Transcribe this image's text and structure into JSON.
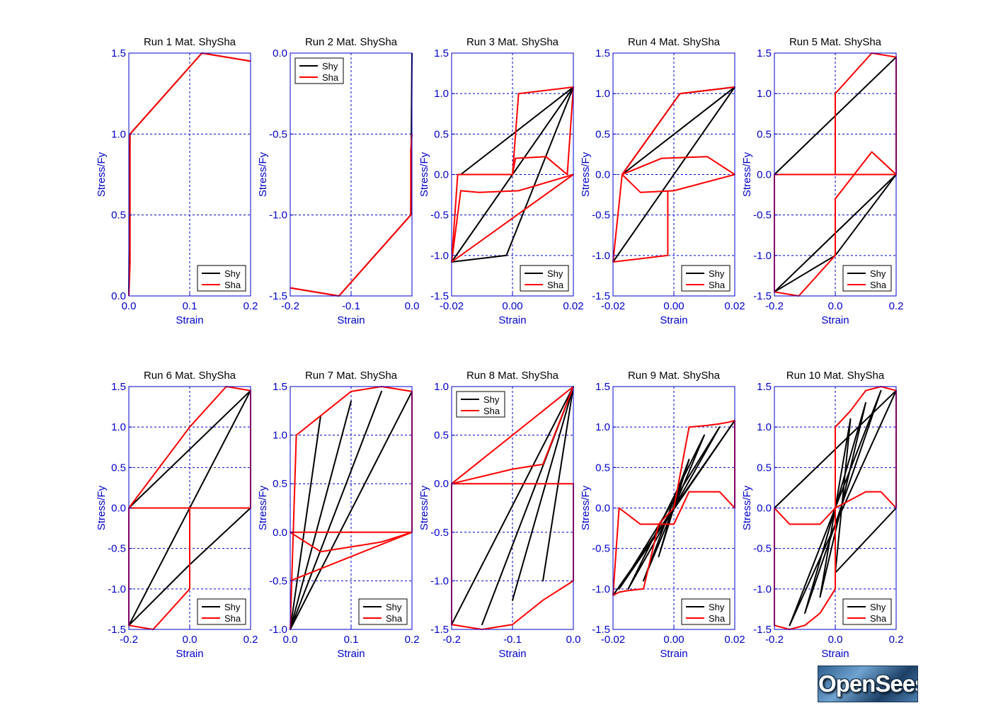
{
  "logo_text": "OpenSees",
  "colors": {
    "axis": "#0000cc",
    "grid": "#0000cc",
    "title": "#000000",
    "shy": "#000000",
    "sha": "#ff0000"
  },
  "chart_data": [
    {
      "type": "line",
      "title": "Run 1   Mat. ShySha",
      "xlabel": "Strain",
      "ylabel": "Stress/Fy",
      "xlim": [
        0,
        0.2
      ],
      "ylim": [
        0,
        1.5
      ],
      "xticks": [
        0,
        0.1,
        0.2
      ],
      "xtick_labels": [
        "0.0",
        "0.1",
        "0.2"
      ],
      "yticks": [
        0,
        0.5,
        1,
        1.5
      ],
      "ytick_labels": [
        "0.0",
        "0.5",
        "1.0",
        "1.5"
      ],
      "legend": "bottom-right",
      "series": [
        {
          "name": "Shy",
          "color": "#000000",
          "x": [
            0,
            0.002,
            0.12,
            0.2
          ],
          "y": [
            0,
            1.0,
            1.5,
            1.45
          ]
        },
        {
          "name": "Sha",
          "color": "#ff0000",
          "x": [
            0,
            0.002,
            0.002,
            0.12,
            0.2
          ],
          "y": [
            0,
            0.2,
            1.0,
            1.5,
            1.45
          ]
        }
      ]
    },
    {
      "type": "line",
      "title": "Run 2   Mat. ShySha",
      "xlabel": "Strain",
      "ylabel": "Stress/Fy",
      "xlim": [
        -0.2,
        0
      ],
      "ylim": [
        -1.5,
        0
      ],
      "xticks": [
        -0.2,
        -0.1,
        0
      ],
      "xtick_labels": [
        "-0.2",
        "-0.1",
        "0.0"
      ],
      "yticks": [
        -1.5,
        -1,
        -0.5,
        0
      ],
      "ytick_labels": [
        "-1.5",
        "-1.0",
        "-0.5",
        "0.0"
      ],
      "legend": "top-left",
      "series": [
        {
          "name": "Shy",
          "color": "#000000",
          "x": [
            0,
            -0.002,
            -0.12,
            -0.2
          ],
          "y": [
            0,
            -1.0,
            -1.5,
            -1.45
          ]
        },
        {
          "name": "Sha",
          "color": "#ff0000",
          "x": [
            0,
            -0.002,
            -0.002,
            -0.12,
            -0.2
          ],
          "y": [
            -0.5,
            -0.6,
            -1.0,
            -1.5,
            -1.45
          ]
        }
      ]
    },
    {
      "type": "line",
      "title": "Run 3   Mat. ShySha",
      "xlabel": "Strain",
      "ylabel": "Stress/Fy",
      "xlim": [
        -0.02,
        0.02
      ],
      "ylim": [
        -1.5,
        1.5
      ],
      "xticks": [
        -0.02,
        0,
        0.02
      ],
      "xtick_labels": [
        "-0.02",
        "0.00",
        "0.02"
      ],
      "yticks": [
        -1.5,
        -1,
        -0.5,
        0,
        0.5,
        1,
        1.5
      ],
      "ytick_labels": [
        "-1.5",
        "-1.0",
        "-0.5",
        "0.0",
        "0.5",
        "1.0",
        "1.5"
      ],
      "legend": "bottom-right",
      "series": [
        {
          "name": "Shy",
          "color": "#000000",
          "x": [
            -0.017,
            0.02,
            -0.02,
            -0.002,
            0.02,
            -0.02
          ],
          "y": [
            0,
            1.08,
            -1.08,
            -1.0,
            1.08,
            -1.08
          ]
        },
        {
          "name": "Sha",
          "color": "#ff0000",
          "x": [
            0,
            0.001,
            0.002,
            0.02,
            0.018,
            0.011,
            0.001,
            0.0,
            -0.018,
            -0.02,
            -0.017,
            -0.011,
            0.002,
            0.02,
            -0.02
          ],
          "y": [
            0,
            0.5,
            1.0,
            1.08,
            0.0,
            0.22,
            0.2,
            0.0,
            0.0,
            -1.08,
            -0.2,
            -0.22,
            -0.2,
            0.0,
            -1.08
          ]
        }
      ]
    },
    {
      "type": "line",
      "title": "Run 4   Mat. ShySha",
      "xlabel": "Strain",
      "ylabel": "Stress/Fy",
      "xlim": [
        -0.02,
        0.02
      ],
      "ylim": [
        -1.5,
        1.5
      ],
      "xticks": [
        -0.02,
        0,
        0.02
      ],
      "xtick_labels": [
        "-0.02",
        "0.00",
        "0.02"
      ],
      "yticks": [
        -1.5,
        -1,
        -0.5,
        0,
        0.5,
        1,
        1.5
      ],
      "ytick_labels": [
        "-1.5",
        "-1.0",
        "-0.5",
        "0.0",
        "0.5",
        "1.0",
        "1.5"
      ],
      "legend": "bottom-right",
      "series": [
        {
          "name": "Shy",
          "color": "#000000",
          "x": [
            -0.02,
            0.02,
            -0.017,
            0.002,
            0.02,
            -0.02
          ],
          "y": [
            -1.08,
            1.08,
            0,
            1.0,
            1.08,
            -1.08
          ]
        },
        {
          "name": "Sha",
          "color": "#ff0000",
          "x": [
            -0.002,
            -0.002,
            -0.02,
            -0.017,
            -0.011,
            0.0,
            0.02,
            0.011,
            -0.004,
            -0.017,
            0.002,
            0.02
          ],
          "y": [
            -0.2,
            -1.0,
            -1.08,
            0.0,
            -0.22,
            -0.2,
            0.0,
            0.22,
            0.2,
            0.0,
            1.0,
            1.08
          ]
        }
      ]
    },
    {
      "type": "line",
      "title": "Run 5   Mat. ShySha",
      "xlabel": "Strain",
      "ylabel": "Stress/Fy",
      "xlim": [
        -0.2,
        0.2
      ],
      "ylim": [
        -1.5,
        1.5
      ],
      "xticks": [
        -0.2,
        0,
        0.2
      ],
      "xtick_labels": [
        "-0.2",
        "0.0",
        "0.2"
      ],
      "yticks": [
        -1.5,
        -1,
        -0.5,
        0,
        0.5,
        1,
        1.5
      ],
      "ytick_labels": [
        "-1.5",
        "-1.0",
        "-0.5",
        "0.0",
        "0.5",
        "1.0",
        "1.5"
      ],
      "legend": "bottom-right",
      "series": [
        {
          "name": "Shy",
          "color": "#000000",
          "x": [
            -0.2,
            0.2,
            0.2,
            -0.2,
            0.0,
            0.2
          ],
          "y": [
            0,
            1.45,
            0,
            -1.45,
            -1.0,
            0
          ]
        },
        {
          "name": "Sha",
          "color": "#ff0000",
          "x": [
            0,
            0,
            0.12,
            0.2,
            0.2,
            0.0,
            -0.2,
            -0.2,
            -0.12,
            0.0,
            0.0,
            0.0,
            0.12,
            0.2,
            0.2
          ],
          "y": [
            0,
            1.0,
            1.5,
            1.45,
            0,
            0,
            0,
            -1.45,
            -1.5,
            -1.0,
            -0.5,
            -0.3,
            0.28,
            0.0,
            1.45
          ]
        }
      ]
    },
    {
      "type": "line",
      "title": "Run 6   Mat. ShySha",
      "xlabel": "Strain",
      "ylabel": "Stress/Fy",
      "xlim": [
        -0.2,
        0.2
      ],
      "ylim": [
        -1.5,
        1.5
      ],
      "xticks": [
        -0.2,
        0,
        0.2
      ],
      "xtick_labels": [
        "-0.2",
        "0.0",
        "0.2"
      ],
      "yticks": [
        -1.5,
        -1,
        -0.5,
        0,
        0.5,
        1,
        1.5
      ],
      "ytick_labels": [
        "-1.5",
        "-1.0",
        "-0.5",
        "0.0",
        "0.5",
        "1.0",
        "1.5"
      ],
      "legend": "bottom-right",
      "series": [
        {
          "name": "Shy",
          "color": "#000000",
          "x": [
            -0.2,
            0.2,
            -0.2,
            0.0,
            0.2,
            -0.2
          ],
          "y": [
            0,
            1.45,
            -1.45,
            -0.7,
            0,
            0
          ]
        },
        {
          "name": "Sha",
          "color": "#ff0000",
          "x": [
            -0.2,
            0.0,
            0.12,
            0.2,
            0.2,
            -0.2,
            -0.2,
            -0.12,
            0.0,
            0.0,
            0.0
          ],
          "y": [
            0,
            1.0,
            1.5,
            1.45,
            0,
            0,
            -1.45,
            -1.5,
            -1.0,
            -0.4,
            0
          ]
        }
      ]
    },
    {
      "type": "line",
      "title": "Run 7   Mat. ShySha",
      "xlabel": "Strain",
      "ylabel": "Stress/Fy",
      "xlim": [
        0,
        0.2
      ],
      "ylim": [
        -1,
        1.5
      ],
      "xticks": [
        0,
        0.1,
        0.2
      ],
      "xtick_labels": [
        "0.0",
        "0.1",
        "0.2"
      ],
      "yticks": [
        -1,
        -0.5,
        0,
        0.5,
        1,
        1.5
      ],
      "ytick_labels": [
        "-1.0",
        "-0.5",
        "0.0",
        "0.5",
        "1.0",
        "1.5"
      ],
      "legend": "bottom-right",
      "series": [
        {
          "name": "Shy",
          "color": "#000000",
          "x": [
            0,
            0.05,
            0,
            0.1,
            0,
            0.15,
            0,
            0.2,
            0
          ],
          "y": [
            -1,
            1.2,
            -1,
            1.35,
            -1,
            1.45,
            -1,
            1.45,
            -1
          ]
        },
        {
          "name": "Sha",
          "color": "#ff0000",
          "x": [
            0,
            0.01,
            0.05,
            0.1,
            0.15,
            0.2,
            0.2,
            0.15,
            0.1,
            0.05,
            0.01,
            0.0,
            0.05,
            0.1,
            0.15,
            0.2,
            0.0
          ],
          "y": [
            -1,
            1.0,
            1.2,
            1.45,
            1.5,
            1.45,
            0,
            0,
            0,
            0,
            0,
            0,
            -0.2,
            -0.15,
            -0.1,
            0,
            -0.5
          ]
        }
      ]
    },
    {
      "type": "line",
      "title": "Run 8   Mat. ShySha",
      "xlabel": "Strain",
      "ylabel": "Stress/Fy",
      "xlim": [
        -0.2,
        0
      ],
      "ylim": [
        -1.5,
        1
      ],
      "xticks": [
        -0.2,
        -0.1,
        0
      ],
      "xtick_labels": [
        "-0.2",
        "-0.1",
        "0.0"
      ],
      "yticks": [
        -1.5,
        -1,
        -0.5,
        0,
        0.5,
        1
      ],
      "ytick_labels": [
        "-1.5",
        "-1.0",
        "-0.5",
        "0.0",
        "0.5",
        "1.0"
      ],
      "legend": "top-left",
      "series": [
        {
          "name": "Shy",
          "color": "#000000",
          "x": [
            0,
            -0.2,
            0,
            -0.15,
            0,
            -0.1,
            0,
            -0.05,
            0
          ],
          "y": [
            1.0,
            -1.45,
            1.0,
            -1.45,
            1.0,
            -1.2,
            1.0,
            -1.0,
            1.0
          ]
        },
        {
          "name": "Sha",
          "color": "#ff0000",
          "x": [
            0,
            -0.2,
            -0.2,
            -0.15,
            -0.1,
            -0.05,
            0,
            0,
            -0.05,
            -0.1,
            -0.15,
            -0.2,
            -0.1,
            -0.05,
            0
          ],
          "y": [
            1.0,
            0,
            -1.45,
            -1.5,
            -1.45,
            -1.2,
            -1.0,
            0,
            0,
            0.0,
            0.0,
            0,
            0.15,
            0.2,
            1.0
          ]
        }
      ]
    },
    {
      "type": "line",
      "title": "Run 9   Mat. ShySha",
      "xlabel": "Strain",
      "ylabel": "Stress/Fy",
      "xlim": [
        -0.02,
        0.02
      ],
      "ylim": [
        -1.5,
        1.5
      ],
      "xticks": [
        -0.02,
        0,
        0.02
      ],
      "xtick_labels": [
        "-0.02",
        "0.00",
        "0.02"
      ],
      "yticks": [
        -1.5,
        -1,
        -0.5,
        0,
        0.5,
        1,
        1.5
      ],
      "ytick_labels": [
        "-1.5",
        "-1.0",
        "-0.5",
        "0.0",
        "0.5",
        "1.0",
        "1.5"
      ],
      "legend": "bottom-right",
      "series": [
        {
          "name": "Shy",
          "color": "#000000",
          "x": [
            -0.02,
            0.02,
            -0.018,
            0.015,
            -0.015,
            0.01,
            -0.01,
            0.005,
            -0.005,
            0.002
          ],
          "y": [
            -1.08,
            1.08,
            -1.0,
            1.0,
            -1.0,
            0.9,
            -0.9,
            0.6,
            -0.6,
            0.3
          ]
        },
        {
          "name": "Sha",
          "color": "#ff0000",
          "x": [
            -0.02,
            -0.018,
            -0.011,
            -0.005,
            0.0,
            0.005,
            0.011,
            0.015,
            0.018,
            0.02,
            0.02,
            0.015,
            0.01,
            0.005,
            0.0,
            -0.005,
            -0.01,
            -0.015,
            -0.018,
            -0.02
          ],
          "y": [
            -1.08,
            0.0,
            -0.2,
            -0.2,
            0.0,
            1.0,
            1.02,
            1.04,
            1.06,
            1.08,
            0,
            0.2,
            0.2,
            0.2,
            -0.2,
            -0.2,
            -1.0,
            -1.02,
            -1.04,
            -1.08
          ]
        }
      ]
    },
    {
      "type": "line",
      "title": "Run 10   Mat. ShySha",
      "xlabel": "Strain",
      "ylabel": "Stress/Fy",
      "xlim": [
        -0.2,
        0.2
      ],
      "ylim": [
        -1.5,
        1.5
      ],
      "xticks": [
        -0.2,
        0,
        0.2
      ],
      "xtick_labels": [
        "-0.2",
        "0.0",
        "0.2"
      ],
      "yticks": [
        -1.5,
        -1,
        -0.5,
        0,
        0.5,
        1,
        1.5
      ],
      "ytick_labels": [
        "-1.5",
        "-1.0",
        "-0.5",
        "0.0",
        "0.5",
        "1.0",
        "1.5"
      ],
      "legend": "bottom-right",
      "series": [
        {
          "name": "Shy",
          "color": "#000000",
          "x": [
            -0.2,
            0.2,
            -0.15,
            0.15,
            -0.1,
            0.1,
            -0.05,
            0.05,
            0,
            0.2
          ],
          "y": [
            0,
            1.45,
            -1.45,
            1.45,
            -1.3,
            1.3,
            -1.1,
            1.1,
            -0.8,
            0
          ]
        },
        {
          "name": "Sha",
          "color": "#ff0000",
          "x": [
            -0.2,
            -0.2,
            -0.15,
            -0.1,
            -0.05,
            0.0,
            0.0,
            0.05,
            0.1,
            0.15,
            0.2,
            0.2,
            0.15,
            0.1,
            0.05,
            0.0,
            -0.05,
            -0.1,
            -0.15,
            -0.2
          ],
          "y": [
            0,
            -1.45,
            -1.5,
            -1.45,
            -1.3,
            -1.0,
            1.0,
            1.2,
            1.45,
            1.5,
            1.45,
            0,
            0.2,
            0.2,
            0.1,
            0,
            -0.2,
            -0.2,
            -0.2,
            0
          ]
        }
      ]
    }
  ]
}
